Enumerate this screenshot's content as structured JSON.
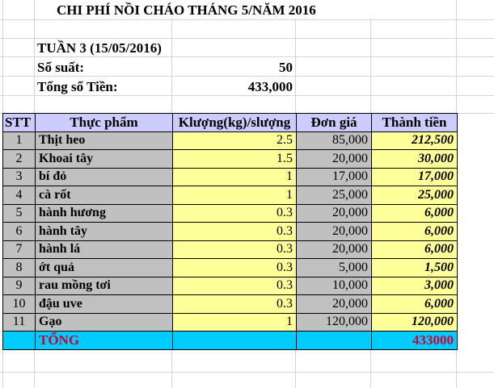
{
  "title": "CHI PHÍ NỒI CHÁO THÁNG 5/NĂM 2016",
  "week": "TUẦN 3  (15/05/2016)",
  "servings_label": "Số suất:",
  "servings_value": "50",
  "total_label": "Tổng số Tiền:",
  "total_value": "433,000",
  "table": {
    "headers": [
      "STT",
      "Thực phẩm",
      "Klượng(kg)/slượng",
      "Đơn giá",
      "Thành tiền"
    ],
    "rows": [
      [
        "1",
        "Thịt heo",
        "2.5",
        "85,000",
        "212,500"
      ],
      [
        "2",
        "Khoai tây",
        "1.5",
        "20,000",
        "30,000"
      ],
      [
        "3",
        "bí đỏ",
        "1",
        "17,000",
        "17,000"
      ],
      [
        "4",
        "cà rốt",
        "1",
        "25,000",
        "25,000"
      ],
      [
        "5",
        "hành hương",
        "0.3",
        "20,000",
        "6,000"
      ],
      [
        "6",
        "hành tây",
        "0.3",
        "20,000",
        "6,000"
      ],
      [
        "7",
        "hành lá",
        "0.3",
        "20,000",
        "6,000"
      ],
      [
        "8",
        "ớt quả",
        "0.3",
        "5,000",
        "1,500"
      ],
      [
        "9",
        "rau mồng tơi",
        "0.3",
        "10,000",
        "3,000"
      ],
      [
        "10",
        "đậu uve",
        "0.3",
        "20,000",
        "6,000"
      ],
      [
        "11",
        "Gạo",
        "1",
        "120,000",
        "120,000"
      ]
    ],
    "total_label": "TỔNG",
    "total_value": "433000"
  },
  "colors": {
    "header": "#ccccff",
    "gray": "#c0c0c0",
    "yellow": "#ffff99",
    "total_bg": "#00ccff",
    "total_text": "#cc0033"
  }
}
